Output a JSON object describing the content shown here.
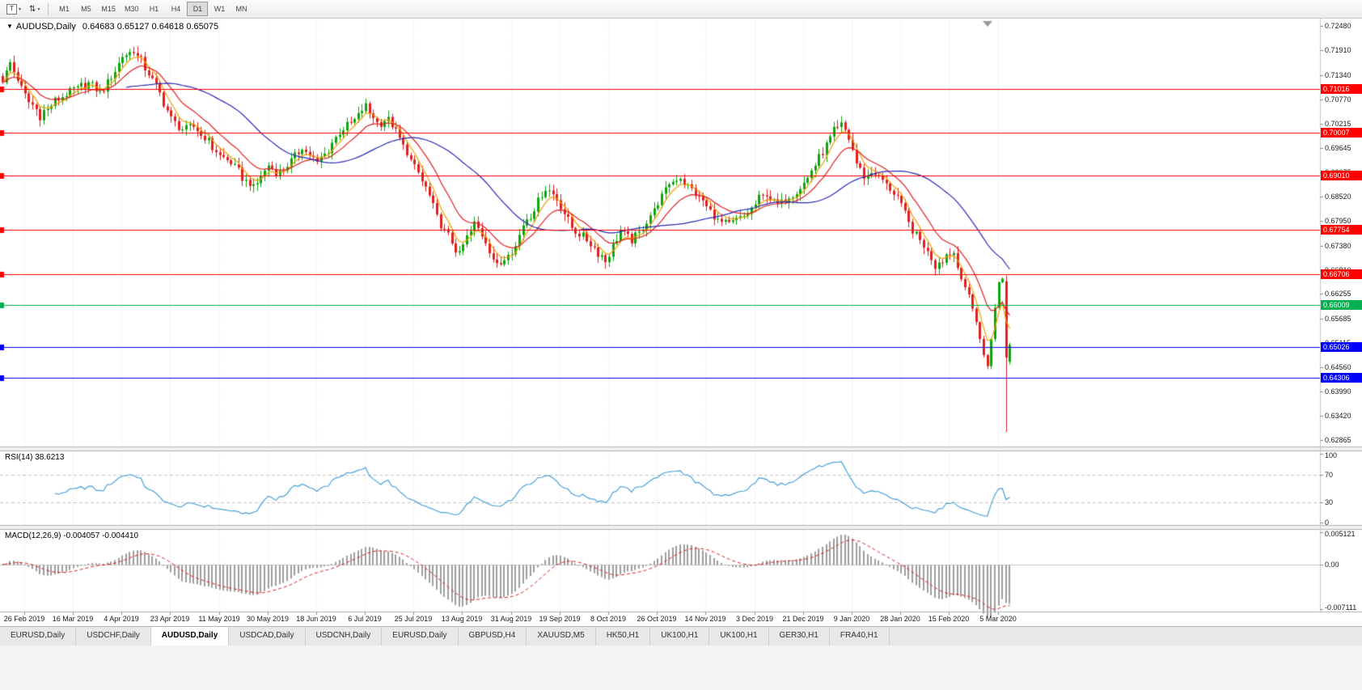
{
  "toolbar": {
    "icon_buttons": [
      {
        "name": "chart-template-button",
        "glyph": "T",
        "caret": "▾"
      },
      {
        "name": "scale-toggle-button",
        "glyph": "⇅",
        "caret": "▾"
      }
    ],
    "timeframes": [
      "M1",
      "M5",
      "M15",
      "M30",
      "H1",
      "H4",
      "D1",
      "W1",
      "MN"
    ],
    "active_timeframe": "D1"
  },
  "chart": {
    "collapse_glyph": "▼",
    "symbol_label": "AUDUSD,Daily",
    "ohlc_label": "0.64683 0.65127 0.64618 0.65075"
  },
  "chart_data": {
    "type": "candlestick",
    "title": "AUDUSD,Daily",
    "y_max": 0.7248,
    "y_min": 0.62865,
    "y_axis_ticks": [
      "0.72480",
      "0.71910",
      "0.71340",
      "0.70770",
      "0.70215",
      "0.69645",
      "0.69075",
      "0.68520",
      "0.67950",
      "0.67380",
      "0.66810",
      "0.66255",
      "0.65685",
      "0.65115",
      "0.64560",
      "0.63990",
      "0.63420",
      "0.62865"
    ],
    "x_axis_labels": [
      "26 Feb 2019",
      "16 Mar 2019",
      "4 Apr 2019",
      "23 Apr 2019",
      "11 May 2019",
      "30 May 2019",
      "18 Jun 2019",
      "6 Jul 2019",
      "25 Jul 2019",
      "13 Aug 2019",
      "31 Aug 2019",
      "19 Sep 2019",
      "8 Oct 2019",
      "26 Oct 2019",
      "14 Nov 2019",
      "3 Dec 2019",
      "21 Dec 2019",
      "9 Jan 2020",
      "28 Jan 2020",
      "15 Feb 2020",
      "5 Mar 2020"
    ],
    "candle_count": 270,
    "up_color": "#0ca50c",
    "down_color": "#e02020",
    "close_waypoints": [
      [
        0,
        0.7125
      ],
      [
        2,
        0.716
      ],
      [
        6,
        0.7085
      ],
      [
        10,
        0.704
      ],
      [
        14,
        0.7072
      ],
      [
        19,
        0.7098
      ],
      [
        23,
        0.7118
      ],
      [
        26,
        0.709
      ],
      [
        29,
        0.7132
      ],
      [
        32,
        0.7178
      ],
      [
        35,
        0.719
      ],
      [
        38,
        0.7152
      ],
      [
        41,
        0.7108
      ],
      [
        45,
        0.7035
      ],
      [
        48,
        0.7008
      ],
      [
        51,
        0.7012
      ],
      [
        54,
        0.6988
      ],
      [
        58,
        0.6945
      ],
      [
        61,
        0.6932
      ],
      [
        64,
        0.6898
      ],
      [
        67,
        0.6872
      ],
      [
        71,
        0.6922
      ],
      [
        74,
        0.6905
      ],
      [
        77,
        0.6938
      ],
      [
        80,
        0.6968
      ],
      [
        84,
        0.6928
      ],
      [
        87,
        0.6962
      ],
      [
        90,
        0.6998
      ],
      [
        93,
        0.7022
      ],
      [
        97,
        0.7062
      ],
      [
        100,
        0.7022
      ],
      [
        103,
        0.7032
      ],
      [
        106,
        0.6985
      ],
      [
        109,
        0.6938
      ],
      [
        111,
        0.6905
      ],
      [
        113,
        0.6872
      ],
      [
        116,
        0.6802
      ],
      [
        119,
        0.6758
      ],
      [
        122,
        0.6718
      ],
      [
        124,
        0.6755
      ],
      [
        126,
        0.6788
      ],
      [
        129,
        0.6748
      ],
      [
        132,
        0.6688
      ],
      [
        135,
        0.6722
      ],
      [
        137,
        0.6735
      ],
      [
        139,
        0.6788
      ],
      [
        142,
        0.6822
      ],
      [
        145,
        0.6872
      ],
      [
        148,
        0.6848
      ],
      [
        150,
        0.6812
      ],
      [
        152,
        0.6778
      ],
      [
        155,
        0.6758
      ],
      [
        158,
        0.6732
      ],
      [
        161,
        0.6702
      ],
      [
        163,
        0.674
      ],
      [
        165,
        0.6772
      ],
      [
        168,
        0.6748
      ],
      [
        171,
        0.6778
      ],
      [
        174,
        0.6822
      ],
      [
        176,
        0.685
      ],
      [
        178,
        0.6882
      ],
      [
        181,
        0.6895
      ],
      [
        184,
        0.6868
      ],
      [
        187,
        0.6842
      ],
      [
        189,
        0.6818
      ],
      [
        191,
        0.6792
      ],
      [
        194,
        0.6788
      ],
      [
        197,
        0.6802
      ],
      [
        200,
        0.6822
      ],
      [
        202,
        0.6846
      ],
      [
        204,
        0.6858
      ],
      [
        207,
        0.6832
      ],
      [
        210,
        0.6852
      ],
      [
        213,
        0.6872
      ],
      [
        215,
        0.6896
      ],
      [
        217,
        0.6928
      ],
      [
        220,
        0.6968
      ],
      [
        222,
        0.7002
      ],
      [
        224,
        0.7018
      ],
      [
        226,
        0.6988
      ],
      [
        228,
        0.693
      ],
      [
        230,
        0.6898
      ],
      [
        233,
        0.6908
      ],
      [
        236,
        0.6878
      ],
      [
        239,
        0.6852
      ],
      [
        241,
        0.681
      ],
      [
        243,
        0.6772
      ],
      [
        246,
        0.6738
      ],
      [
        249,
        0.6692
      ],
      [
        252,
        0.6715
      ],
      [
        254,
        0.672
      ],
      [
        256,
        0.6662
      ],
      [
        258,
        0.6622
      ],
      [
        260,
        0.6562
      ],
      [
        262,
        0.6482
      ],
      [
        263,
        0.6458
      ],
      [
        264,
        0.6522
      ],
      [
        265,
        0.6592
      ],
      [
        266,
        0.6652
      ],
      [
        267,
        0.6662
      ],
      [
        268,
        0.648
      ],
      [
        269,
        0.65075
      ]
    ],
    "special_candles_ohlc": {
      "268": [
        0.6655,
        0.6668,
        0.6305,
        0.6478
      ],
      "269": [
        0.64683,
        0.65127,
        0.64618,
        0.65075
      ]
    },
    "horizontal_lines": [
      {
        "price": 0.71016,
        "label": "0.71016",
        "color": "#ff0000"
      },
      {
        "price": 0.70007,
        "label": "0.70007",
        "color": "#ff0000"
      },
      {
        "price": 0.6901,
        "label": "0.69010",
        "color": "#ff0000"
      },
      {
        "price": 0.67754,
        "label": "0.67754",
        "color": "#ff0000"
      },
      {
        "price": 0.66706,
        "label": "0.66706",
        "color": "#ff0000"
      },
      {
        "price": 0.66009,
        "label": "0.66009",
        "color": "#00b050"
      },
      {
        "price": 0.65026,
        "label": "0.65026",
        "color": "#0000ff"
      },
      {
        "price": 0.64306,
        "label": "0.64306",
        "color": "#0000ff"
      }
    ],
    "moving_averages": [
      {
        "name": "fast-ma",
        "period": 5,
        "type": "ema",
        "color": "#f0a000"
      },
      {
        "name": "mid-ma",
        "period": 13,
        "type": "ema",
        "color": "#e02020"
      },
      {
        "name": "slow-ma",
        "period": 34,
        "type": "sma",
        "color": "#2828b8"
      }
    ]
  },
  "rsi": {
    "label": "RSI(14) 38.6213",
    "period": 14,
    "current": 38.6213,
    "axis_labels": [
      "100",
      "70",
      "30",
      "0"
    ],
    "level_lines": [
      70,
      30
    ],
    "color": "#3c9cd7"
  },
  "macd": {
    "label": "MACD(12,26,9) -0.004057 -0.004410",
    "fast": 12,
    "slow": 26,
    "signal": 9,
    "current_main": -0.004057,
    "current_signal": -0.00441,
    "axis_labels": [
      "0.005121",
      "0.00",
      "-0.007111"
    ],
    "y_max": 0.005121,
    "y_min": -0.007111,
    "hist_color": "#9e9e9e",
    "signal_color": "#e02020"
  },
  "tabs": {
    "items": [
      "EURUSD,Daily",
      "USDCHF,Daily",
      "AUDUSD,Daily",
      "USDCAD,Daily",
      "USDCNH,Daily",
      "EURUSD,Daily",
      "GBPUSD,H4",
      "XAUUSD,M5",
      "HK50,H1",
      "UK100,H1",
      "UK100,H1",
      "GER30,H1",
      "FRA40,H1"
    ],
    "active_index": 2
  }
}
